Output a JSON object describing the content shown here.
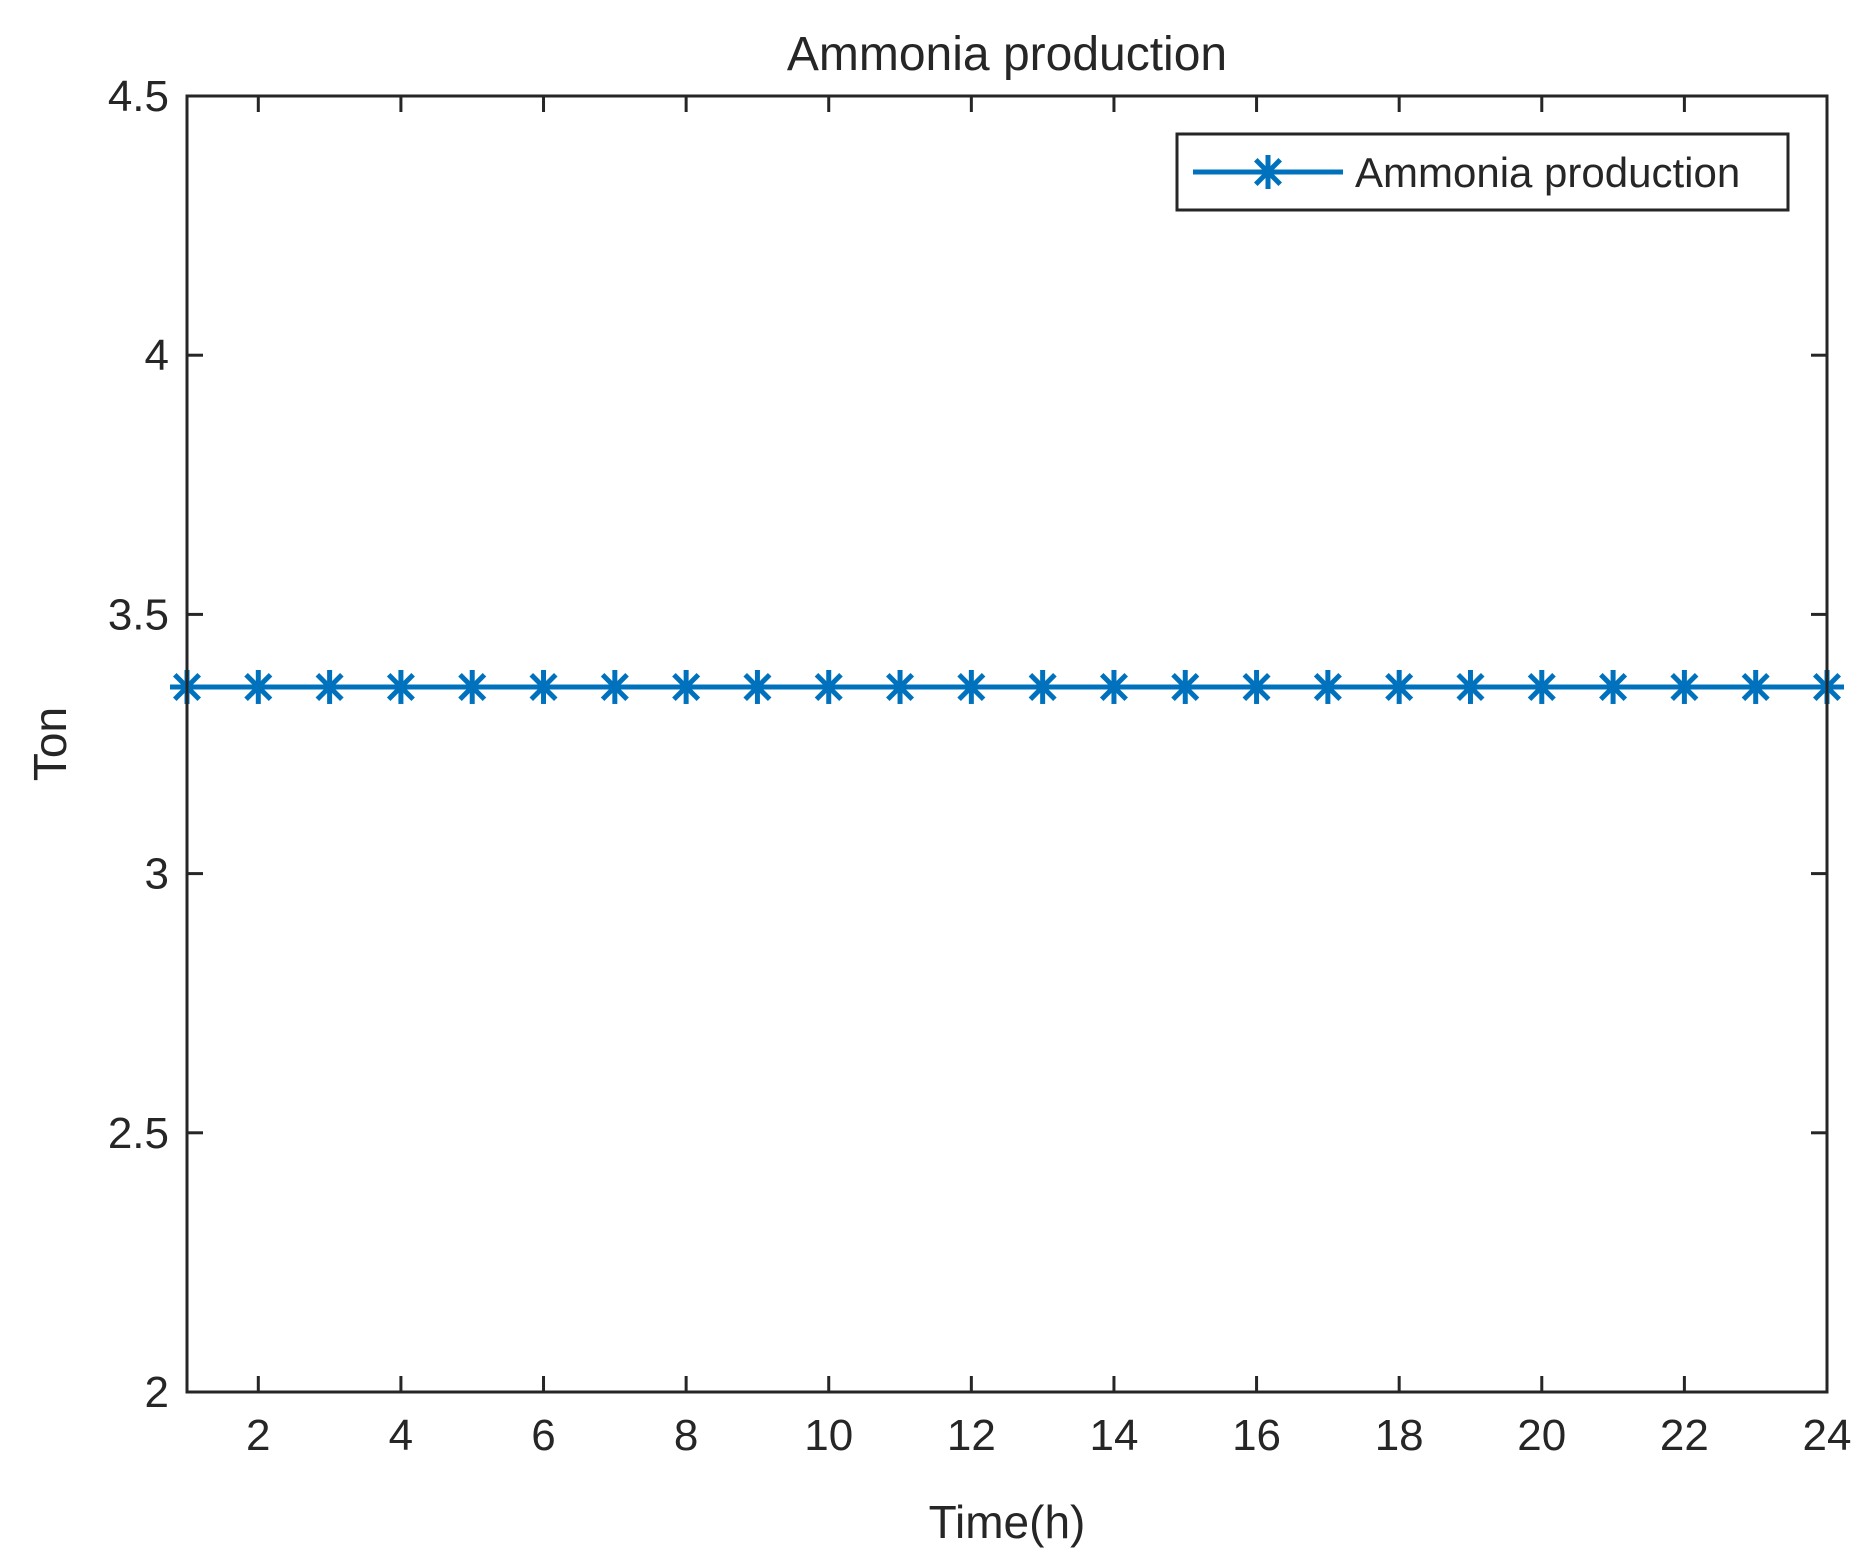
{
  "chart_data": {
    "type": "line",
    "title": "Ammonia production",
    "xlabel": "Time(h)",
    "ylabel": "Ton",
    "xlim": [
      1,
      24
    ],
    "ylim": [
      2,
      4.5
    ],
    "xticks": [
      2,
      4,
      6,
      8,
      10,
      12,
      14,
      16,
      18,
      20,
      22,
      24
    ],
    "yticks": [
      2,
      2.5,
      3,
      3.5,
      4,
      4.5
    ],
    "x": [
      1,
      2,
      3,
      4,
      5,
      6,
      7,
      8,
      9,
      10,
      11,
      12,
      13,
      14,
      15,
      16,
      17,
      18,
      19,
      20,
      21,
      22,
      23,
      24
    ],
    "series": [
      {
        "name": "Ammonia production",
        "values": [
          3.36,
          3.36,
          3.36,
          3.36,
          3.36,
          3.36,
          3.36,
          3.36,
          3.36,
          3.36,
          3.36,
          3.36,
          3.36,
          3.36,
          3.36,
          3.36,
          3.36,
          3.36,
          3.36,
          3.36,
          3.36,
          3.36,
          3.36,
          3.36
        ],
        "color": "#0072BD",
        "marker": "asterisk"
      }
    ],
    "legend": {
      "position": "top-right"
    },
    "grid": false
  }
}
